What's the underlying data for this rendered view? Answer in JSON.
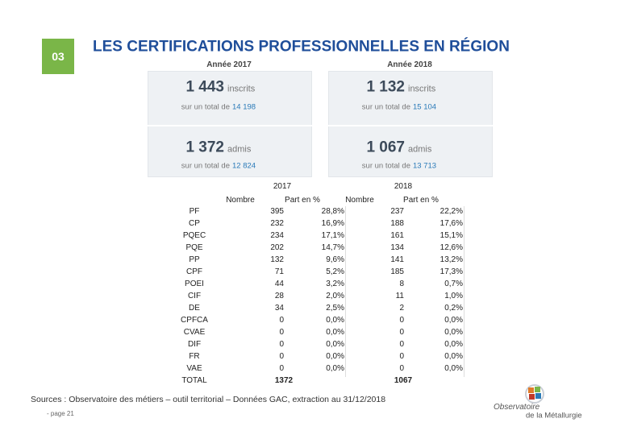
{
  "header": {
    "section": "03",
    "title": "LES CERTIFICATIONS PROFESSIONNELLES EN RÉGION"
  },
  "panels": [
    {
      "year": "Année 2017",
      "inscrits": {
        "value": "1 443",
        "unit": "inscrits",
        "prefix": "sur un total de",
        "total": "14 198"
      },
      "admis": {
        "value": "1 372",
        "unit": "admis",
        "prefix": "sur un total de",
        "total": "12 824"
      }
    },
    {
      "year": "Année 2018",
      "inscrits": {
        "value": "1 132",
        "unit": "inscrits",
        "prefix": "sur un total de",
        "total": "15 104"
      },
      "admis": {
        "value": "1 067",
        "unit": "admis",
        "prefix": "sur un total de",
        "total": "13 713"
      }
    }
  ],
  "table": {
    "years": [
      "2017",
      "2018"
    ],
    "columns": [
      "Nombre",
      "Part en %",
      "Nombre",
      "Part en %"
    ],
    "rows": [
      [
        "PF",
        "395",
        "28,8%",
        "237",
        "22,2%"
      ],
      [
        "CP",
        "232",
        "16,9%",
        "188",
        "17,6%"
      ],
      [
        "PQEC",
        "234",
        "17,1%",
        "161",
        "15,1%"
      ],
      [
        "PQE",
        "202",
        "14,7%",
        "134",
        "12,6%"
      ],
      [
        "PP",
        "132",
        "9,6%",
        "141",
        "13,2%"
      ],
      [
        "CPF",
        "71",
        "5,2%",
        "185",
        "17,3%"
      ],
      [
        "POEI",
        "44",
        "3,2%",
        "8",
        "0,7%"
      ],
      [
        "CIF",
        "28",
        "2,0%",
        "11",
        "1,0%"
      ],
      [
        "DE",
        "34",
        "2,5%",
        "2",
        "0,2%"
      ],
      [
        "CPFCA",
        "0",
        "0,0%",
        "0",
        "0,0%"
      ],
      [
        "CVAE",
        "0",
        "0,0%",
        "0",
        "0,0%"
      ],
      [
        "DIF",
        "0",
        "0,0%",
        "0",
        "0,0%"
      ],
      [
        "FR",
        "0",
        "0,0%",
        "0",
        "0,0%"
      ],
      [
        "VAE",
        "0",
        "0,0%",
        "0",
        "0,0%"
      ]
    ],
    "total": [
      "TOTAL",
      "1372",
      "1067"
    ]
  },
  "footer": {
    "source": "Sources : Observatoire des métiers – outil territorial – Données GAC, extraction au 31/12/2018",
    "page": "- page 21",
    "logo": [
      "Observatoire",
      "de la Métallurgie"
    ]
  }
}
